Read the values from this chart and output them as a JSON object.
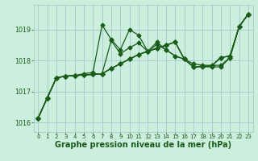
{
  "bg_color": "#cceedd",
  "grid_color": "#aacccc",
  "line_color": "#1a5c1a",
  "text_color": "#1a5c1a",
  "title": "Graphe pression niveau de la mer (hPa)",
  "title_fontsize": 7.0,
  "xlim": [
    -0.5,
    23.5
  ],
  "ylim": [
    1015.7,
    1019.8
  ],
  "yticks": [
    1016,
    1017,
    1018,
    1019
  ],
  "xticks": [
    0,
    1,
    2,
    3,
    4,
    5,
    6,
    7,
    8,
    9,
    10,
    11,
    12,
    13,
    14,
    15,
    16,
    17,
    18,
    19,
    20,
    21,
    22,
    23
  ],
  "series": [
    [
      1016.15,
      1016.8,
      1017.45,
      1017.5,
      1017.52,
      1017.54,
      1017.56,
      1017.58,
      1017.75,
      1017.9,
      1018.05,
      1018.2,
      1018.3,
      1018.4,
      1018.5,
      1018.6,
      1018.05,
      1017.8,
      1017.82,
      1017.84,
      1018.1,
      1018.15,
      1019.1,
      1019.5
    ],
    [
      1016.15,
      1016.8,
      1017.45,
      1017.5,
      1017.52,
      1017.54,
      1017.56,
      1017.58,
      1017.75,
      1017.9,
      1018.05,
      1018.2,
      1018.3,
      1018.4,
      1018.5,
      1018.6,
      1018.05,
      1017.8,
      1017.82,
      1017.84,
      1018.1,
      1018.15,
      1019.1,
      1019.5
    ],
    [
      1016.15,
      1016.8,
      1017.45,
      1017.5,
      1017.52,
      1017.58,
      1017.62,
      1019.15,
      1018.68,
      1018.35,
      1019.0,
      1018.82,
      1018.3,
      1018.6,
      1018.35,
      1018.15,
      1018.05,
      1017.9,
      1017.85,
      1017.85,
      1017.85,
      1018.1,
      1019.1,
      1019.5
    ],
    [
      1016.15,
      1016.8,
      1017.45,
      1017.5,
      1017.52,
      1017.54,
      1017.56,
      1017.58,
      1018.65,
      1018.22,
      1018.42,
      1018.57,
      1018.3,
      1018.52,
      1018.35,
      1018.15,
      1018.05,
      1017.8,
      1017.8,
      1017.8,
      1017.8,
      1018.1,
      1019.1,
      1019.5
    ],
    [
      1016.15,
      1016.8,
      1017.45,
      1017.5,
      1017.52,
      1017.54,
      1017.56,
      1017.58,
      1017.75,
      1017.9,
      1018.05,
      1018.2,
      1018.3,
      1018.4,
      1018.5,
      1018.6,
      1018.05,
      1017.8,
      1017.82,
      1017.84,
      1018.1,
      1018.15,
      1019.1,
      1019.5
    ]
  ],
  "marker": "D",
  "marker_size": 2.5,
  "linewidth": 0.9
}
